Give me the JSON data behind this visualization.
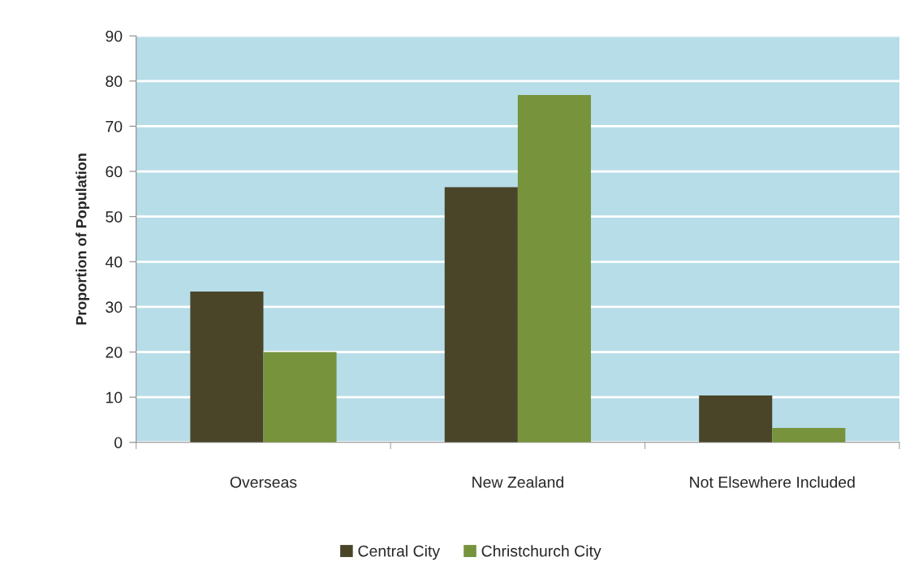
{
  "chart_data": {
    "type": "bar",
    "ylabel": "Proportion of Population",
    "categories": [
      "Overseas",
      "New Zealand",
      "Not Elsewhere Included"
    ],
    "series": [
      {
        "name": "Central City",
        "color": "#4a4529",
        "values": [
          33.4,
          56.5,
          10.4
        ]
      },
      {
        "name": "Christchurch City",
        "color": "#77933c",
        "values": [
          20.0,
          76.9,
          3.2
        ]
      }
    ],
    "ylim": [
      0,
      90
    ],
    "yticks": [
      0,
      10,
      20,
      30,
      40,
      50,
      60,
      70,
      80,
      90
    ],
    "grid": "y",
    "legend": "bottom"
  }
}
